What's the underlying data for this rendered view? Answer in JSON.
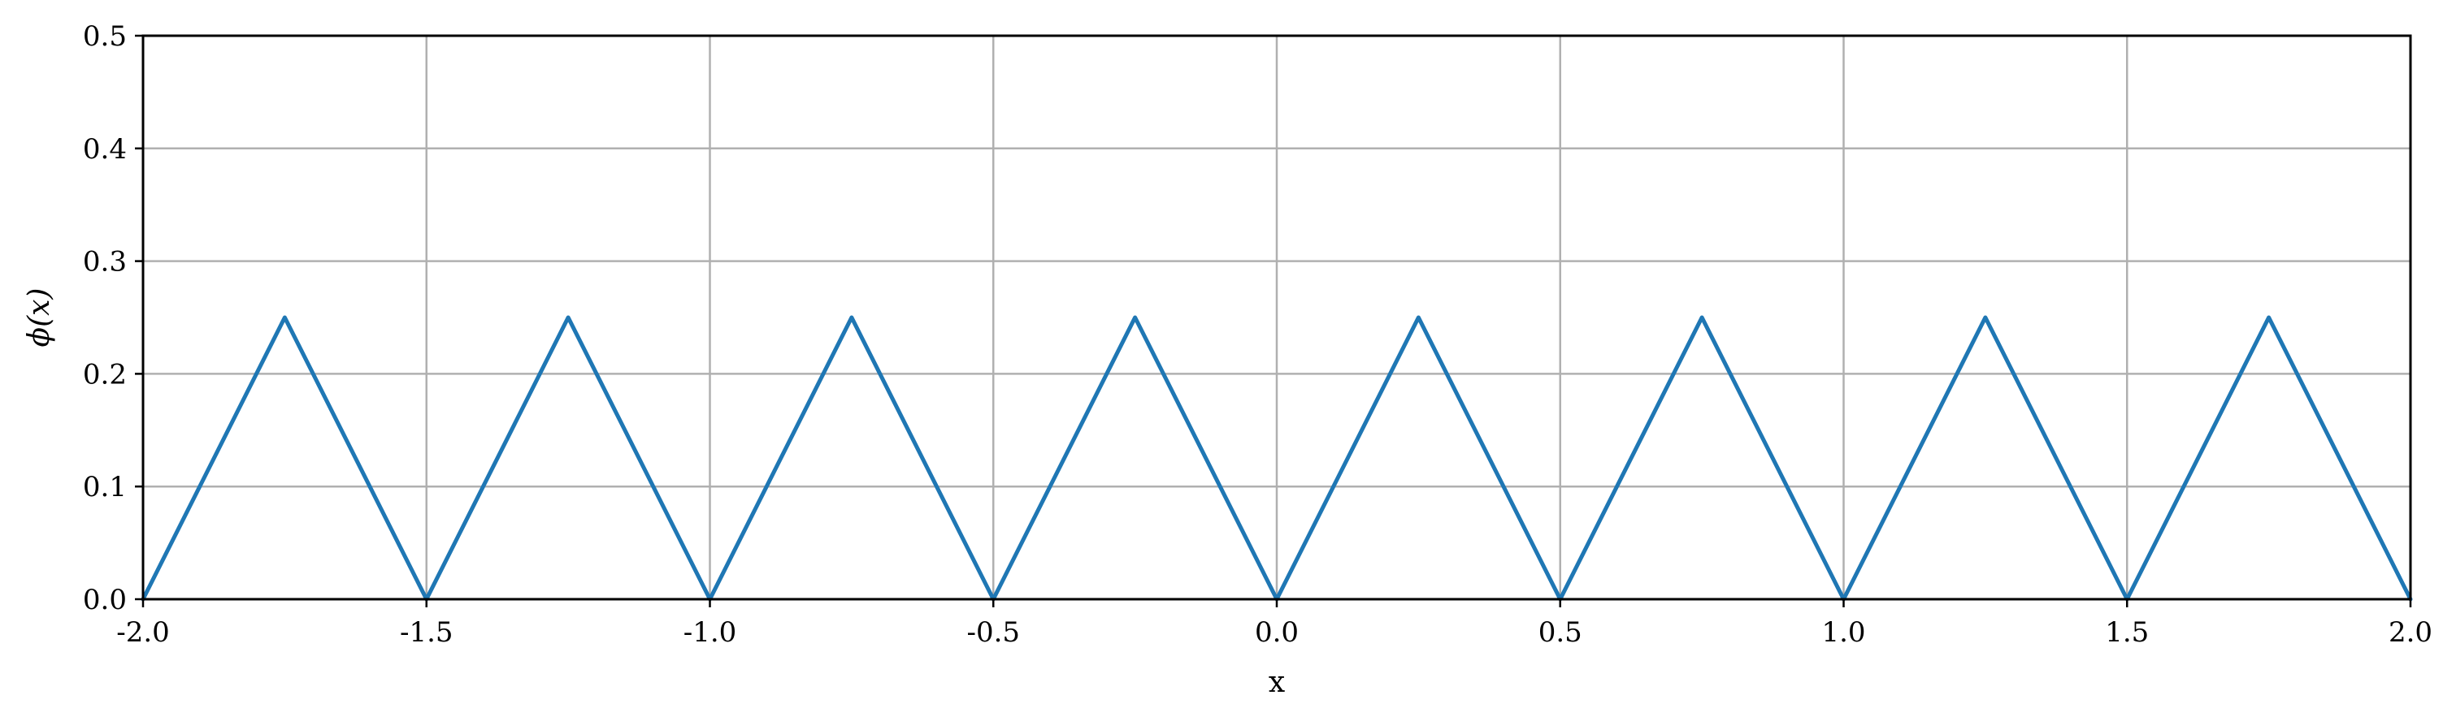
{
  "chart_data": {
    "type": "line",
    "title": "",
    "xlabel": "x",
    "ylabel": "ϕ(x)",
    "xlim": [
      -2.0,
      2.0
    ],
    "ylim": [
      0.0,
      0.5
    ],
    "grid": true,
    "xticks": [
      "-2.0",
      "-1.5",
      "-1.0",
      "-0.5",
      "0.0",
      "0.5",
      "1.0",
      "1.5",
      "2.0"
    ],
    "yticks": [
      "0.0",
      "0.1",
      "0.2",
      "0.3",
      "0.4",
      "0.5"
    ],
    "series": [
      {
        "color": "#1f77b4",
        "x": [
          -2.0,
          -1.75,
          -1.5,
          -1.25,
          -1.0,
          -0.75,
          -0.5,
          -0.25,
          0.0,
          0.25,
          0.5,
          0.75,
          1.0,
          1.25,
          1.5,
          1.75,
          2.0
        ],
        "y": [
          0.0,
          0.25,
          0.0,
          0.25,
          0.0,
          0.25,
          0.0,
          0.25,
          0.0,
          0.25,
          0.0,
          0.25,
          0.0,
          0.25,
          0.0,
          0.25,
          0.0
        ]
      }
    ]
  }
}
